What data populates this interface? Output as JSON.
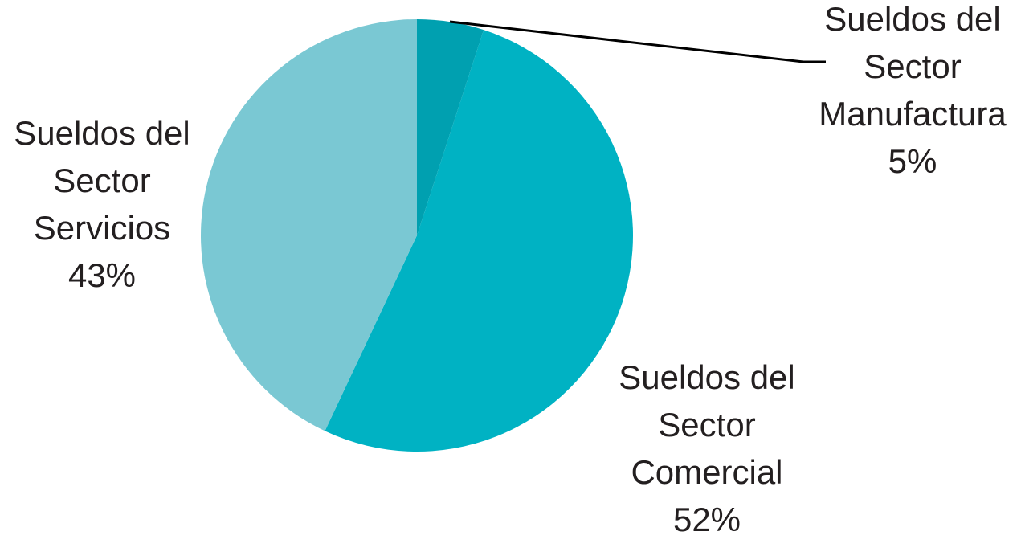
{
  "chart_data": {
    "type": "pie",
    "slices": [
      {
        "label_lines": [
          "Sueldos del",
          "Sector",
          "Manufactura"
        ],
        "value": 5,
        "value_label": "5%",
        "color": "#00a0b0"
      },
      {
        "label_lines": [
          "Sueldos del",
          "Sector",
          "Comercial"
        ],
        "value": 52,
        "value_label": "52%",
        "color": "#00b2c3"
      },
      {
        "label_lines": [
          "Sueldos del",
          "Sector",
          "Servicios"
        ],
        "value": 43,
        "value_label": "43%",
        "color": "#7ac8d3"
      }
    ],
    "start_angle_deg": 0,
    "direction": "clockwise",
    "legend": false,
    "leader_line_color": "#000000"
  }
}
